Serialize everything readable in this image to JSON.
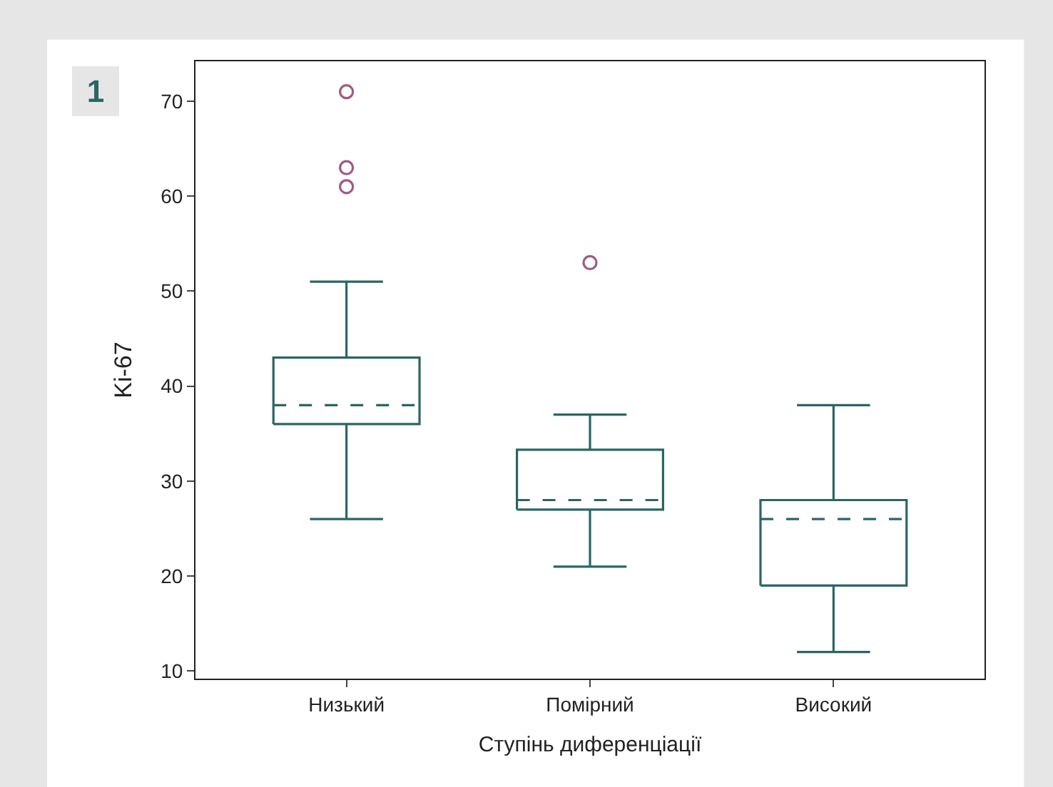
{
  "chart_data": {
    "type": "box",
    "ylabel": "Ki-67",
    "xlabel": "Ступінь диференціації",
    "annotations": [
      "1"
    ],
    "categories": [
      "Низький",
      "Помірний",
      "Високий"
    ],
    "series": [
      {
        "color": "#2b6664",
        "boxes": [
          {
            "low": 26,
            "q1": 36,
            "median": 38,
            "q3": 43,
            "high": 51,
            "outliers": [
              61,
              63,
              71
            ]
          },
          {
            "low": 21,
            "q1": 27,
            "median": 28,
            "q3": 33.3,
            "high": 37,
            "outliers": [
              53
            ]
          },
          {
            "low": 12,
            "q1": 19,
            "median": 26,
            "q3": 28,
            "high": 38
          }
        ]
      }
    ],
    "ylim": [
      9.2,
      74.2
    ],
    "yticks": [
      10,
      20,
      30,
      40,
      50,
      60,
      70
    ]
  }
}
